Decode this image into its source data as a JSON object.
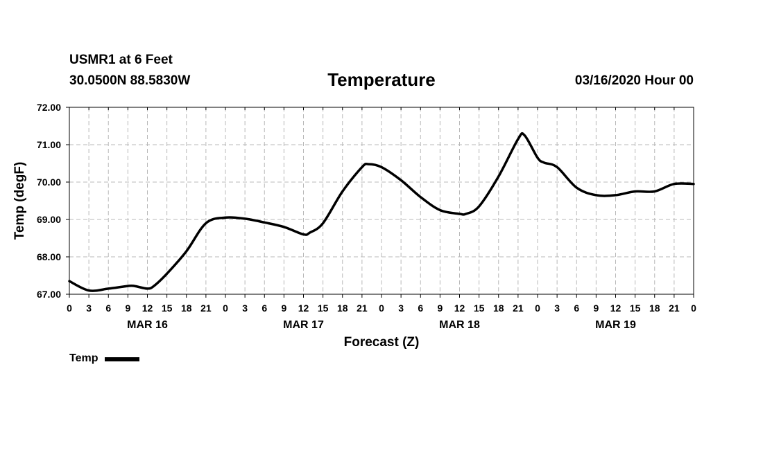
{
  "header": {
    "station": "USMR1 at 6 Feet",
    "coords": "30.0500N 88.5830W",
    "datetime": "03/16/2020 Hour 00"
  },
  "chart_data": {
    "type": "line",
    "title": "Temperature",
    "xlabel": "Forecast (Z)",
    "ylabel": "Temp (degF)",
    "ylim": [
      67.0,
      72.0
    ],
    "xlim_hours": [
      0,
      96
    ],
    "y_ticks": [
      "67.00",
      "68.00",
      "69.00",
      "70.00",
      "71.00",
      "72.00"
    ],
    "x_tick_labels": [
      "0",
      "3",
      "6",
      "9",
      "12",
      "15",
      "18",
      "21",
      "0",
      "3",
      "6",
      "9",
      "12",
      "15",
      "18",
      "21",
      "0",
      "3",
      "6",
      "9",
      "12",
      "15",
      "18",
      "21",
      "0",
      "3",
      "6",
      "9",
      "12",
      "15",
      "18",
      "21",
      "0"
    ],
    "day_labels": [
      "MAR 16",
      "MAR 17",
      "MAR 18",
      "MAR 19"
    ],
    "grid": true,
    "legend": "bottom-left",
    "series": [
      {
        "name": "Temp",
        "color": "#000000",
        "hours": [
          0,
          3,
          6,
          9,
          10,
          12,
          13,
          15,
          18,
          21,
          24,
          27,
          30,
          33,
          36,
          37,
          39,
          42,
          45,
          46,
          48,
          51,
          54,
          57,
          60,
          61,
          63,
          66,
          69,
          70,
          72,
          73,
          75,
          78,
          81,
          84,
          87,
          90,
          93,
          96
        ],
        "values": [
          67.35,
          67.1,
          67.15,
          67.22,
          67.22,
          67.15,
          67.22,
          67.55,
          68.15,
          68.9,
          69.05,
          69.02,
          68.92,
          68.8,
          68.6,
          68.65,
          68.9,
          69.75,
          70.4,
          70.48,
          70.4,
          70.05,
          69.6,
          69.25,
          69.15,
          69.15,
          69.35,
          70.15,
          71.15,
          71.25,
          70.65,
          70.52,
          70.4,
          69.85,
          69.65,
          69.65,
          69.75,
          69.75,
          69.95,
          69.95
        ]
      }
    ]
  }
}
